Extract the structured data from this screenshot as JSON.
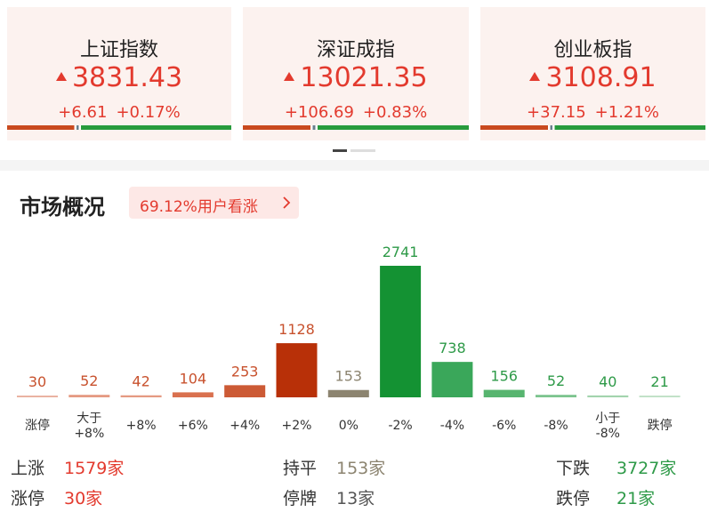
{
  "indices": [
    {
      "name": "上证指数",
      "value": "3831.43",
      "change": "+6.61",
      "pct": "+0.17%"
    },
    {
      "name": "深证成指",
      "value": "13021.35",
      "change": "+106.69",
      "pct": "+0.83%"
    },
    {
      "name": "创业板指",
      "value": "3108.91",
      "change": "+37.15",
      "pct": "+1.21%"
    }
  ],
  "market": {
    "title": "市场概况",
    "sentiment": "69.12%用户看涨"
  },
  "chart_data": {
    "type": "bar",
    "categories": [
      "涨停",
      "大于\n+8%",
      "+8%",
      "+6%",
      "+4%",
      "+2%",
      "0%",
      "-2%",
      "-4%",
      "-6%",
      "-8%",
      "小于\n-8%",
      "跌停"
    ],
    "values": [
      30,
      52,
      42,
      104,
      253,
      1128,
      153,
      2741,
      738,
      156,
      52,
      40,
      21
    ],
    "colors": [
      "#eab3a2",
      "#e59a82",
      "#e59a82",
      "#d9714f",
      "#cc5a35",
      "#b83008",
      "#8c8470",
      "#149233",
      "#3aa75a",
      "#57b56f",
      "#7cc48e",
      "#a3d4ae",
      "#c2e2c8"
    ],
    "label_colors": [
      "#c8522e",
      "#c8522e",
      "#c8522e",
      "#c8522e",
      "#c8522e",
      "#c8522e",
      "#8c8470",
      "#2e9a48",
      "#2e9a48",
      "#2e9a48",
      "#2e9a48",
      "#2e9a48",
      "#2e9a48"
    ]
  },
  "summary": [
    [
      {
        "label": "上涨",
        "value": "1579家"
      },
      {
        "label": "持平",
        "value": "153家"
      },
      {
        "label": "下跌",
        "value": "3727家"
      }
    ],
    [
      {
        "label": "涨停",
        "value": "30家"
      },
      {
        "label": "停牌",
        "value": "13家"
      },
      {
        "label": "跌停",
        "value": "21家"
      }
    ]
  ]
}
